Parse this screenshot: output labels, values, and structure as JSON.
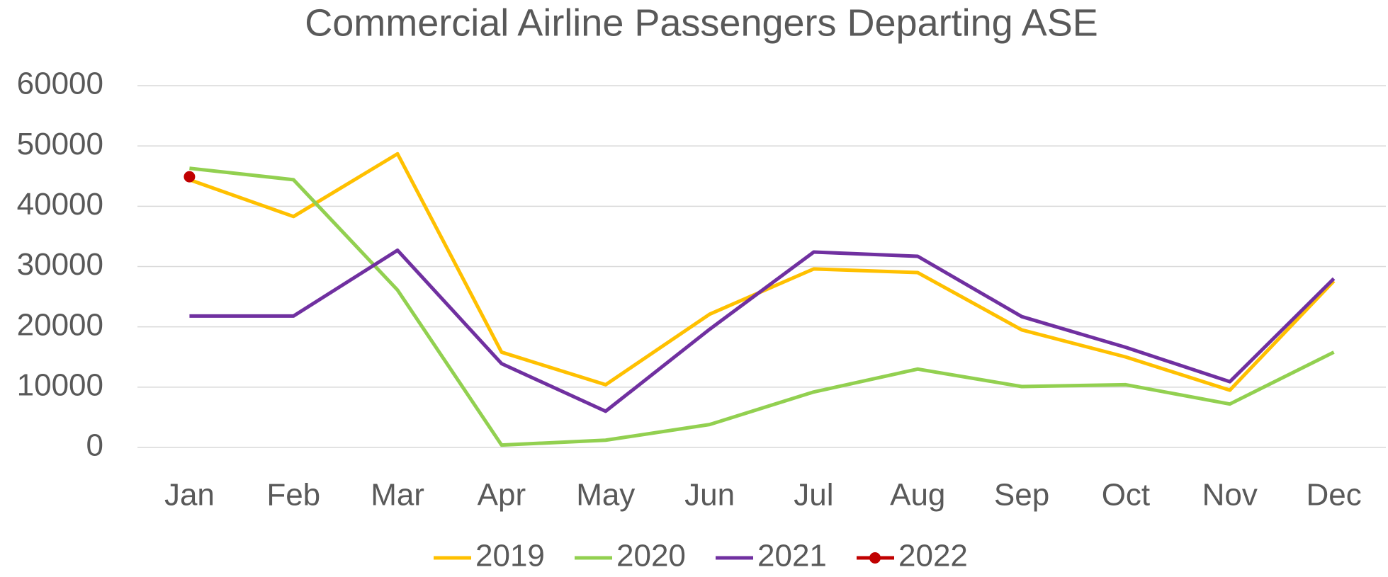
{
  "chart_data": {
    "type": "line",
    "title": "Commercial Airline Passengers Departing ASE",
    "categories": [
      "Jan",
      "Feb",
      "Mar",
      "Apr",
      "May",
      "Jun",
      "Jul",
      "Aug",
      "Sep",
      "Oct",
      "Nov",
      "Dec"
    ],
    "series": [
      {
        "name": "2019",
        "color": "#ffc000",
        "marker": false,
        "values": [
          44400,
          38300,
          48700,
          15800,
          10400,
          22100,
          29600,
          29000,
          19500,
          15000,
          9500,
          27600
        ]
      },
      {
        "name": "2020",
        "color": "#92d050",
        "marker": false,
        "values": [
          46300,
          44400,
          26100,
          400,
          1200,
          3800,
          9200,
          13000,
          10100,
          10400,
          7200,
          15800
        ]
      },
      {
        "name": "2021",
        "color": "#7030a0",
        "marker": false,
        "values": [
          21800,
          21800,
          32700,
          13900,
          6000,
          19600,
          32400,
          31700,
          21700,
          16600,
          10900,
          28000
        ]
      },
      {
        "name": "2022",
        "color": "#c00000",
        "marker": true,
        "values": [
          44900,
          null,
          null,
          null,
          null,
          null,
          null,
          null,
          null,
          null,
          null,
          null
        ]
      }
    ],
    "ylim": [
      0,
      60000
    ],
    "yticks": [
      0,
      10000,
      20000,
      30000,
      40000,
      50000,
      60000
    ],
    "grid": true,
    "legend": "bottom"
  }
}
